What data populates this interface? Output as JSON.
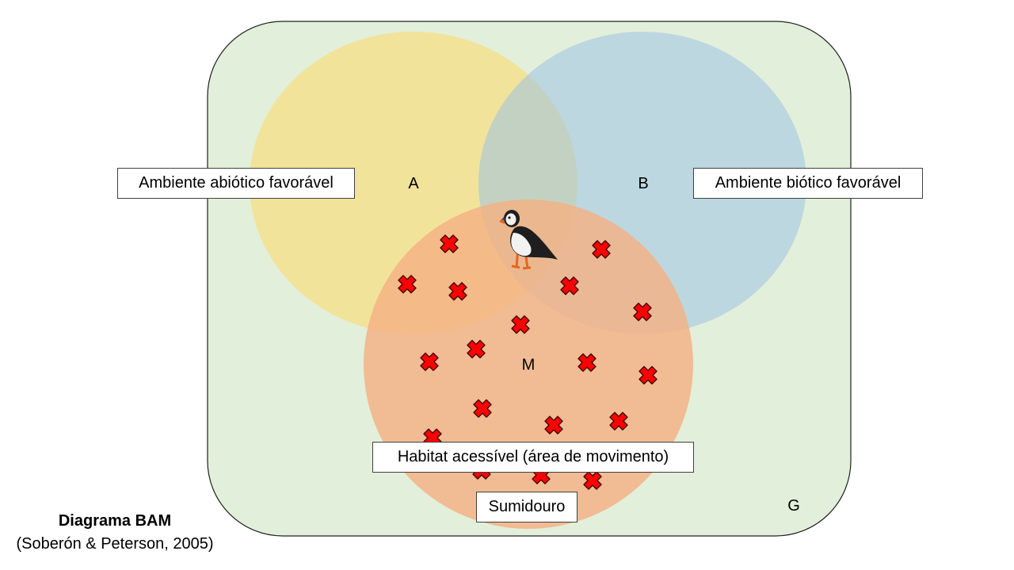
{
  "labels": {
    "abiotic": "Ambiente abiótico favorável",
    "biotic": "Ambiente biótico favorável",
    "movement": "Habitat acessível (área de movimento)",
    "sink": "Sumidouro"
  },
  "sets": {
    "a": "A",
    "b": "B",
    "m": "M",
    "g": "G"
  },
  "caption": {
    "title": "Diagrama BAM",
    "subtitle": "(Soberón & Peterson, 2005)"
  },
  "colors": {
    "g_fill": "#e2efda",
    "a_fill": "#ffd966",
    "b_fill": "#9dc3e6",
    "m_fill": "#f4b183",
    "marker": "#ff0000"
  },
  "icons": {
    "bird": "puffin-icon",
    "marker": "red-x-marker-icon"
  }
}
